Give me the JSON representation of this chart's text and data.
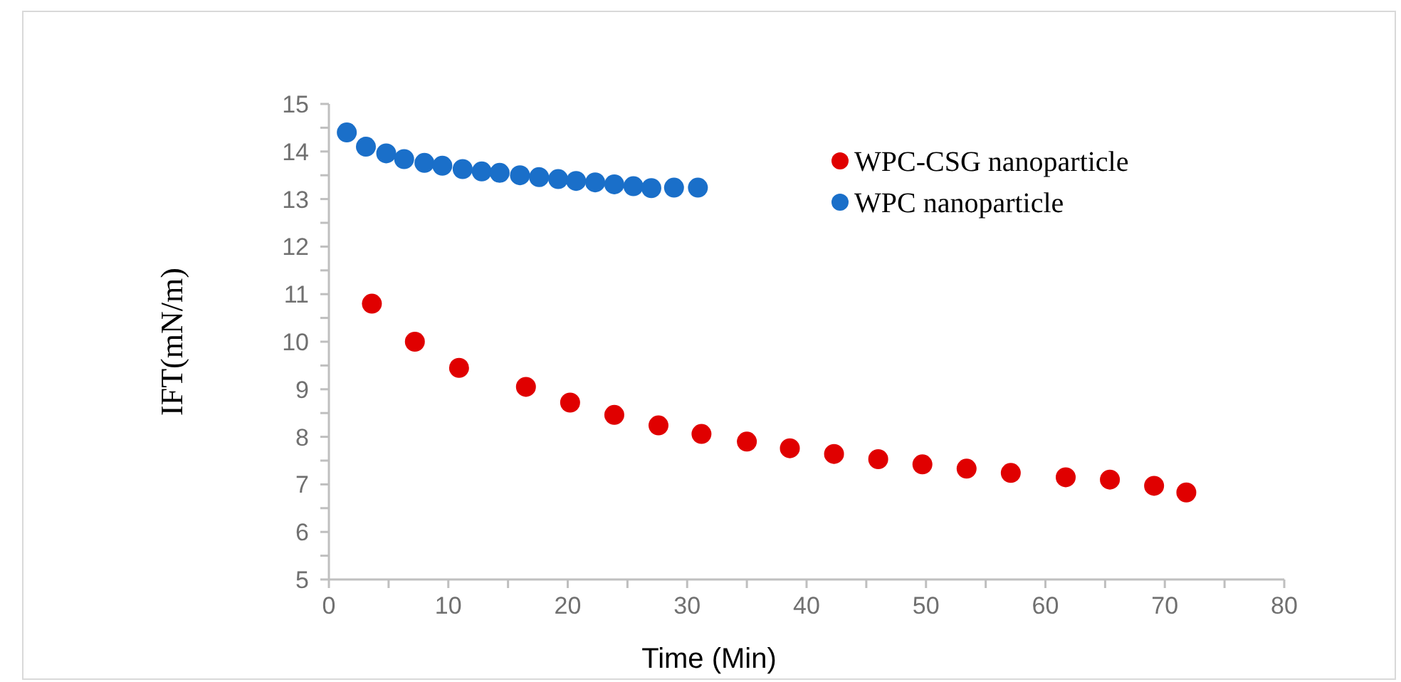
{
  "chart_data": {
    "type": "scatter",
    "xlabel": "Time (Min)",
    "ylabel": "IFT(mN/m)",
    "xlim": [
      0,
      80
    ],
    "ylim": [
      5,
      15
    ],
    "xticks": [
      0,
      {
        "value": 5,
        "label": null
      },
      10,
      {
        "value": 15,
        "label": null
      },
      20,
      {
        "value": 25,
        "label": null
      },
      30,
      {
        "value": 35,
        "label": null
      },
      40,
      {
        "value": 45,
        "label": null
      },
      50,
      {
        "value": 55,
        "label": null
      },
      60,
      {
        "value": 65,
        "label": null
      },
      70,
      {
        "value": 75,
        "label": null
      },
      80
    ],
    "yticks": [
      5,
      {
        "value": 5.5,
        "label": null
      },
      6,
      {
        "value": 6.5,
        "label": null
      },
      7,
      {
        "value": 7.5,
        "label": null
      },
      8,
      {
        "value": 8.5,
        "label": null
      },
      9,
      {
        "value": 9.5,
        "label": null
      },
      10,
      {
        "value": 10.5,
        "label": null
      },
      11,
      {
        "value": 11.5,
        "label": null
      },
      12,
      {
        "value": 12.5,
        "label": null
      },
      13,
      {
        "value": 13.5,
        "label": null
      },
      14,
      {
        "value": 14.5,
        "label": null
      },
      15
    ],
    "grid": false,
    "legend": "top right",
    "marker": "circle",
    "series": [
      {
        "name": "WPC-CSG nanoparticle",
        "color": "#e00000",
        "x": [
          3.6,
          7.2,
          10.9,
          16.5,
          20.2,
          23.9,
          27.6,
          31.2,
          35,
          38.6,
          42.3,
          46,
          49.7,
          53.4,
          57.1,
          61.7,
          65.4,
          69.1,
          71.8
        ],
        "values": [
          10.8,
          10.0,
          9.45,
          9.05,
          8.72,
          8.46,
          8.24,
          8.06,
          7.9,
          7.76,
          7.64,
          7.53,
          7.42,
          7.33,
          7.24,
          7.15,
          7.1,
          6.97,
          6.83
        ]
      },
      {
        "name": "WPC nanoparticle",
        "color": "#1a6fc9",
        "x": [
          1.5,
          3.1,
          4.8,
          6.3,
          8.0,
          9.5,
          11.2,
          12.8,
          14.3,
          16.0,
          17.6,
          19.2,
          20.7,
          22.3,
          23.9,
          25.5,
          27.0,
          28.9,
          30.9
        ],
        "values": [
          14.4,
          14.1,
          13.96,
          13.84,
          13.76,
          13.7,
          13.63,
          13.58,
          13.55,
          13.5,
          13.46,
          13.42,
          13.38,
          13.35,
          13.31,
          13.27,
          13.23,
          13.24,
          13.24
        ]
      }
    ]
  }
}
